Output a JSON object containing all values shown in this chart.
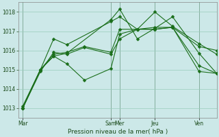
{
  "background_color": "#cce8e8",
  "grid_color": "#99ccbb",
  "line_color": "#1a6e1a",
  "xlabel": "Pression niveau de la mer( hPa )",
  "ylim": [
    1012.5,
    1018.5
  ],
  "yticks": [
    1013,
    1014,
    1015,
    1016,
    1017,
    1018
  ],
  "xtick_labels": [
    "Mar",
    "Sam",
    "Mer",
    "Jeu",
    "Ven"
  ],
  "xtick_positions": [
    0,
    10,
    11,
    15,
    20
  ],
  "xlim": [
    -0.5,
    22
  ],
  "vlines": [
    0,
    10,
    11,
    15,
    20
  ],
  "lines": [
    {
      "x": [
        0,
        2,
        3.5,
        5,
        7,
        10,
        11,
        13,
        15,
        17,
        20,
        22
      ],
      "y": [
        1013.0,
        1014.9,
        1015.9,
        1015.8,
        1016.15,
        1015.8,
        1016.6,
        1017.1,
        1017.1,
        1017.2,
        1015.2,
        1014.8
      ]
    },
    {
      "x": [
        0,
        2,
        3.5,
        5,
        7,
        10,
        11,
        13,
        15,
        17,
        20,
        22
      ],
      "y": [
        1013.0,
        1015.0,
        1015.8,
        1015.9,
        1016.2,
        1015.9,
        1017.1,
        1017.1,
        1017.1,
        1017.2,
        1016.2,
        1016.0
      ]
    },
    {
      "x": [
        0,
        2,
        3.5,
        5,
        10,
        11,
        13,
        15,
        17,
        20,
        22
      ],
      "y": [
        1013.1,
        1015.0,
        1015.7,
        1015.85,
        1017.6,
        1018.15,
        1016.6,
        1017.15,
        1017.75,
        1015.85,
        1014.8
      ]
    },
    {
      "x": [
        0,
        2,
        3.5,
        5,
        10,
        11,
        13,
        15,
        17,
        20,
        22
      ],
      "y": [
        1013.0,
        1015.0,
        1016.6,
        1016.3,
        1017.5,
        1017.75,
        1017.1,
        1018.0,
        1017.25,
        1016.35,
        1015.8
      ]
    },
    {
      "x": [
        0,
        2,
        3.5,
        5,
        7,
        10,
        11,
        13,
        15,
        17,
        20,
        22
      ],
      "y": [
        1013.0,
        1015.0,
        1015.7,
        1015.3,
        1014.45,
        1015.05,
        1016.85,
        1017.1,
        1017.2,
        1017.2,
        1014.9,
        1014.8
      ]
    }
  ]
}
